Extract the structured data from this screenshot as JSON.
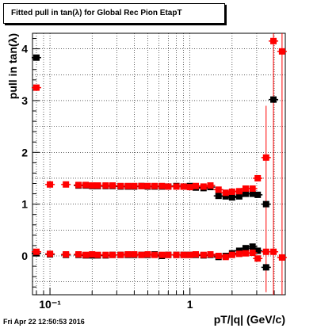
{
  "footer": {
    "timestamp": "Fri Apr 22 12:50:53 2016"
  },
  "chart_data": {
    "type": "scatter",
    "title": "Fitted pull in tan(λ) for Global Rec Pion EtapT",
    "xlabel": "pT/|q| (GeV/c)",
    "ylabel": "pull in tan(λ)",
    "xscale": "log",
    "xlim": [
      0.075,
      4.8
    ],
    "ylim": [
      -0.75,
      4.3
    ],
    "grid": true,
    "x_ticks": [
      {
        "value": 0.1,
        "label": "10⁻¹"
      },
      {
        "value": 1,
        "label": "1"
      }
    ],
    "y_ticks": [
      {
        "value": 0,
        "label": "0"
      },
      {
        "value": 1,
        "label": "1"
      },
      {
        "value": 2,
        "label": "2"
      },
      {
        "value": 3,
        "label": "3"
      },
      {
        "value": 4,
        "label": "4"
      }
    ],
    "colors": {
      "black_series": "#000000",
      "red_series": "#ff0000",
      "axis": "#000000"
    },
    "series": [
      {
        "color": "#000000",
        "marker": "square",
        "points": [
          {
            "x": 0.08,
            "y": 3.83
          },
          {
            "x": 0.16,
            "y": 1.36
          },
          {
            "x": 0.18,
            "y": 1.36
          },
          {
            "x": 0.2,
            "y": 1.35
          },
          {
            "x": 0.22,
            "y": 1.35
          },
          {
            "x": 0.25,
            "y": 1.35
          },
          {
            "x": 0.28,
            "y": 1.35
          },
          {
            "x": 0.32,
            "y": 1.34
          },
          {
            "x": 0.36,
            "y": 1.34
          },
          {
            "x": 0.4,
            "y": 1.34
          },
          {
            "x": 0.45,
            "y": 1.35
          },
          {
            "x": 0.5,
            "y": 1.34
          },
          {
            "x": 0.56,
            "y": 1.34
          },
          {
            "x": 0.63,
            "y": 1.34
          },
          {
            "x": 0.7,
            "y": 1.34
          },
          {
            "x": 0.8,
            "y": 1.35
          },
          {
            "x": 0.9,
            "y": 1.34
          },
          {
            "x": 1.0,
            "y": 1.35
          },
          {
            "x": 1.1,
            "y": 1.32
          },
          {
            "x": 1.25,
            "y": 1.31
          },
          {
            "x": 1.4,
            "y": 1.33
          },
          {
            "x": 1.6,
            "y": 1.16
          },
          {
            "x": 1.8,
            "y": 1.15
          },
          {
            "x": 2.0,
            "y": 1.13
          },
          {
            "x": 2.25,
            "y": 1.15
          },
          {
            "x": 2.5,
            "y": 1.2
          },
          {
            "x": 2.8,
            "y": 1.2
          },
          {
            "x": 3.05,
            "y": 1.18
          },
          {
            "x": 3.5,
            "y": 1.0
          },
          {
            "x": 3.95,
            "y": 3.02
          },
          {
            "x": 0.08,
            "y": 0.05
          },
          {
            "x": 0.1,
            "y": 0.03
          },
          {
            "x": 0.13,
            "y": 0.02
          },
          {
            "x": 0.16,
            "y": 0.02
          },
          {
            "x": 0.18,
            "y": 0.01
          },
          {
            "x": 0.2,
            "y": 0.01
          },
          {
            "x": 0.22,
            "y": 0.01
          },
          {
            "x": 0.25,
            "y": 0.01
          },
          {
            "x": 0.28,
            "y": 0.02
          },
          {
            "x": 0.32,
            "y": 0.02
          },
          {
            "x": 0.36,
            "y": 0.02
          },
          {
            "x": 0.4,
            "y": 0.02
          },
          {
            "x": 0.45,
            "y": 0.02
          },
          {
            "x": 0.5,
            "y": 0.02
          },
          {
            "x": 0.56,
            "y": 0.03
          },
          {
            "x": 0.63,
            "y": 0.0
          },
          {
            "x": 0.7,
            "y": 0.02
          },
          {
            "x": 0.8,
            "y": 0.02
          },
          {
            "x": 0.9,
            "y": 0.02
          },
          {
            "x": 1.0,
            "y": 0.02
          },
          {
            "x": 1.1,
            "y": 0.02
          },
          {
            "x": 1.25,
            "y": 0.01
          },
          {
            "x": 1.4,
            "y": 0.02
          },
          {
            "x": 1.6,
            "y": -0.02
          },
          {
            "x": 1.8,
            "y": 0.0
          },
          {
            "x": 2.0,
            "y": 0.05
          },
          {
            "x": 2.25,
            "y": 0.1
          },
          {
            "x": 2.5,
            "y": 0.15
          },
          {
            "x": 2.8,
            "y": 0.18
          },
          {
            "x": 3.05,
            "y": 0.1
          },
          {
            "x": 3.5,
            "y": -0.22
          }
        ]
      },
      {
        "color": "#ff0000",
        "marker": "square",
        "points": [
          {
            "x": 0.08,
            "y": 3.25
          },
          {
            "x": 0.1,
            "y": 1.38
          },
          {
            "x": 0.13,
            "y": 1.38
          },
          {
            "x": 0.16,
            "y": 1.37
          },
          {
            "x": 0.18,
            "y": 1.37
          },
          {
            "x": 0.2,
            "y": 1.36
          },
          {
            "x": 0.22,
            "y": 1.36
          },
          {
            "x": 0.25,
            "y": 1.36
          },
          {
            "x": 0.28,
            "y": 1.36
          },
          {
            "x": 0.32,
            "y": 1.35
          },
          {
            "x": 0.36,
            "y": 1.35
          },
          {
            "x": 0.4,
            "y": 1.35
          },
          {
            "x": 0.45,
            "y": 1.35
          },
          {
            "x": 0.5,
            "y": 1.35
          },
          {
            "x": 0.56,
            "y": 1.35
          },
          {
            "x": 0.63,
            "y": 1.35
          },
          {
            "x": 0.7,
            "y": 1.34
          },
          {
            "x": 0.8,
            "y": 1.34
          },
          {
            "x": 0.9,
            "y": 1.34
          },
          {
            "x": 1.0,
            "y": 1.33
          },
          {
            "x": 1.1,
            "y": 1.35
          },
          {
            "x": 1.25,
            "y": 1.34
          },
          {
            "x": 1.4,
            "y": 1.36
          },
          {
            "x": 1.6,
            "y": 1.28
          },
          {
            "x": 1.8,
            "y": 1.22
          },
          {
            "x": 2.0,
            "y": 1.24
          },
          {
            "x": 2.25,
            "y": 1.25
          },
          {
            "x": 2.5,
            "y": 1.3
          },
          {
            "x": 2.8,
            "y": 1.3
          },
          {
            "x": 3.05,
            "y": 1.5
          },
          {
            "x": 3.5,
            "y": 1.9
          },
          {
            "x": 3.95,
            "y": 4.15
          },
          {
            "x": 4.55,
            "y": 3.95
          },
          {
            "x": 0.08,
            "y": 0.08
          },
          {
            "x": 0.1,
            "y": 0.04
          },
          {
            "x": 0.13,
            "y": 0.03
          },
          {
            "x": 0.16,
            "y": 0.03
          },
          {
            "x": 0.18,
            "y": 0.02
          },
          {
            "x": 0.2,
            "y": 0.03
          },
          {
            "x": 0.22,
            "y": 0.02
          },
          {
            "x": 0.25,
            "y": 0.02
          },
          {
            "x": 0.28,
            "y": 0.02
          },
          {
            "x": 0.32,
            "y": 0.02
          },
          {
            "x": 0.36,
            "y": 0.03
          },
          {
            "x": 0.4,
            "y": 0.03
          },
          {
            "x": 0.45,
            "y": 0.02
          },
          {
            "x": 0.5,
            "y": 0.03
          },
          {
            "x": 0.56,
            "y": 0.02
          },
          {
            "x": 0.63,
            "y": 0.02
          },
          {
            "x": 0.7,
            "y": 0.02
          },
          {
            "x": 0.8,
            "y": 0.02
          },
          {
            "x": 0.9,
            "y": 0.02
          },
          {
            "x": 1.0,
            "y": 0.02
          },
          {
            "x": 1.1,
            "y": 0.03
          },
          {
            "x": 1.25,
            "y": 0.02
          },
          {
            "x": 1.4,
            "y": 0.03
          },
          {
            "x": 1.6,
            "y": 0.0
          },
          {
            "x": 1.8,
            "y": -0.02
          },
          {
            "x": 2.0,
            "y": 0.02
          },
          {
            "x": 2.25,
            "y": 0.04
          },
          {
            "x": 2.5,
            "y": 0.05
          },
          {
            "x": 2.8,
            "y": 0.06
          },
          {
            "x": 3.05,
            "y": -0.05
          },
          {
            "x": 3.5,
            "y": 0.08
          },
          {
            "x": 3.95,
            "y": 0.08
          },
          {
            "x": 4.55,
            "y": -0.03
          }
        ],
        "error_bars": [
          {
            "x": 3.5,
            "low": -0.7,
            "high": 2.9
          },
          {
            "x": 3.95,
            "low": -0.75,
            "high": 4.3
          },
          {
            "x": 4.55,
            "low": -0.75,
            "high": 4.3
          }
        ]
      }
    ]
  }
}
